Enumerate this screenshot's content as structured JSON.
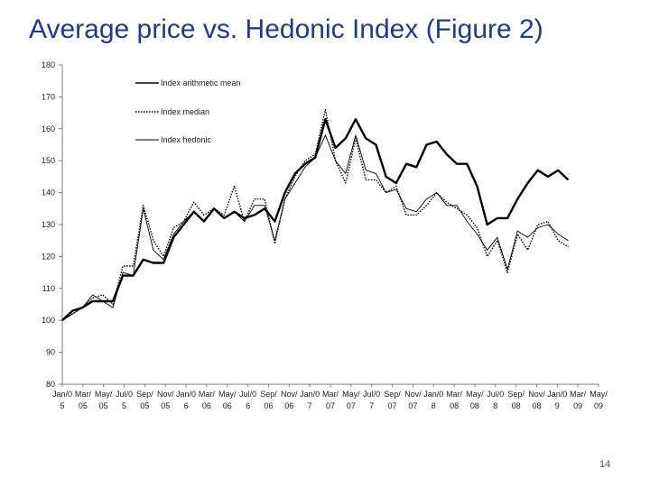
{
  "slide": {
    "title": "Average price vs. Hedonic Index (Figure 2)",
    "page_number": "14"
  },
  "chart_data": {
    "type": "line",
    "title": "",
    "xlabel": "",
    "ylabel": "",
    "ylim": [
      80,
      180
    ],
    "yticks": [
      80,
      90,
      100,
      110,
      120,
      130,
      140,
      150,
      160,
      170,
      180
    ],
    "grid": false,
    "legend_placement": "top-left",
    "x_tick_labels": [
      {
        "top": "Jan/0",
        "bottom": "5"
      },
      {
        "top": "Mar/",
        "bottom": "05"
      },
      {
        "top": "May/",
        "bottom": "05"
      },
      {
        "top": "Jul/0",
        "bottom": "5"
      },
      {
        "top": "Sep/",
        "bottom": "05"
      },
      {
        "top": "Nov/",
        "bottom": "05"
      },
      {
        "top": "Jan/0",
        "bottom": "6"
      },
      {
        "top": "Mar/",
        "bottom": "06"
      },
      {
        "top": "May/",
        "bottom": "06"
      },
      {
        "top": "Jul/0",
        "bottom": "6"
      },
      {
        "top": "Sep/",
        "bottom": "06"
      },
      {
        "top": "Nov/",
        "bottom": "06"
      },
      {
        "top": "Jan/0",
        "bottom": "7"
      },
      {
        "top": "Mar/",
        "bottom": "07"
      },
      {
        "top": "May/",
        "bottom": "07"
      },
      {
        "top": "Jul/0",
        "bottom": "7"
      },
      {
        "top": "Sep/",
        "bottom": "07"
      },
      {
        "top": "Nov/",
        "bottom": "07"
      },
      {
        "top": "Jan/0",
        "bottom": "8"
      },
      {
        "top": "Mar/",
        "bottom": "08"
      },
      {
        "top": "May/",
        "bottom": "08"
      },
      {
        "top": "Jul/0",
        "bottom": "8"
      },
      {
        "top": "Sep/",
        "bottom": "08"
      },
      {
        "top": "Nov/",
        "bottom": "08"
      },
      {
        "top": "Jan/0",
        "bottom": "9"
      },
      {
        "top": "Mar/",
        "bottom": "09"
      },
      {
        "top": "May/",
        "bottom": "09"
      }
    ],
    "x": [
      "Jan 2005",
      "Feb 2005",
      "Mar 2005",
      "Apr 2005",
      "May 2005",
      "Jun 2005",
      "Jul 2005",
      "Aug 2005",
      "Sep 2005",
      "Oct 2005",
      "Nov 2005",
      "Dec 2005",
      "Jan 2006",
      "Feb 2006",
      "Mar 2006",
      "Apr 2006",
      "May 2006",
      "Jun 2006",
      "Jul 2006",
      "Aug 2006",
      "Sep 2006",
      "Oct 2006",
      "Nov 2006",
      "Dec 2006",
      "Jan 2007",
      "Feb 2007",
      "Mar 2007",
      "Apr 2007",
      "May 2007",
      "Jun 2007",
      "Jul 2007",
      "Aug 2007",
      "Sep 2007",
      "Oct 2007",
      "Nov 2007",
      "Dec 2007",
      "Jan 2008",
      "Feb 2008",
      "Mar 2008",
      "Apr 2008",
      "May 2008",
      "Jun 2008",
      "Jul 2008",
      "Aug 2008",
      "Sep 2008",
      "Oct 2008",
      "Nov 2008",
      "Dec 2008",
      "Jan 2009",
      "Feb 2009",
      "Mar 2009",
      "Apr 2009",
      "May 2009",
      "Jun 2009"
    ],
    "series": [
      {
        "name": "Index arithmetic mean",
        "style": "thick-solid",
        "color": "#000000",
        "values": [
          100,
          103,
          104,
          106,
          106,
          106,
          114,
          114,
          119,
          118,
          118,
          126,
          130,
          134,
          131,
          135,
          132,
          134,
          132,
          133,
          135,
          131,
          140,
          146,
          149,
          151,
          163,
          154,
          157,
          163,
          157,
          155,
          145,
          143,
          149,
          148,
          155,
          156,
          152,
          149,
          149,
          142,
          130,
          132,
          132,
          138,
          143,
          147,
          145,
          147,
          144,
          null,
          null,
          null
        ]
      },
      {
        "name": "Index median",
        "style": "dotted",
        "color": "#000000",
        "values": [
          100,
          102,
          104,
          107,
          108,
          105,
          117,
          117,
          136,
          125,
          120,
          129,
          131,
          137,
          133,
          135,
          133,
          142,
          131,
          138,
          138,
          124,
          138,
          145,
          150,
          152,
          166,
          150,
          143,
          157,
          144,
          144,
          140,
          142,
          133,
          133,
          136,
          140,
          137,
          135,
          133,
          129,
          120,
          125,
          115,
          127,
          122,
          130,
          131,
          125,
          123,
          null,
          null,
          null
        ]
      },
      {
        "name": "Index hedonic",
        "style": "thin-solid",
        "color": "#000000",
        "values": [
          100,
          102,
          104,
          108,
          106,
          104,
          115,
          114,
          135,
          122,
          119,
          127,
          131,
          134,
          131,
          135,
          132,
          134,
          131,
          136,
          136,
          125,
          138,
          143,
          148,
          151,
          158,
          150,
          146,
          158,
          147,
          146,
          140,
          141,
          135,
          134,
          138,
          140,
          136,
          136,
          131,
          127,
          122,
          126,
          116,
          128,
          126,
          129,
          130,
          127,
          125,
          null,
          null,
          null
        ]
      }
    ]
  }
}
